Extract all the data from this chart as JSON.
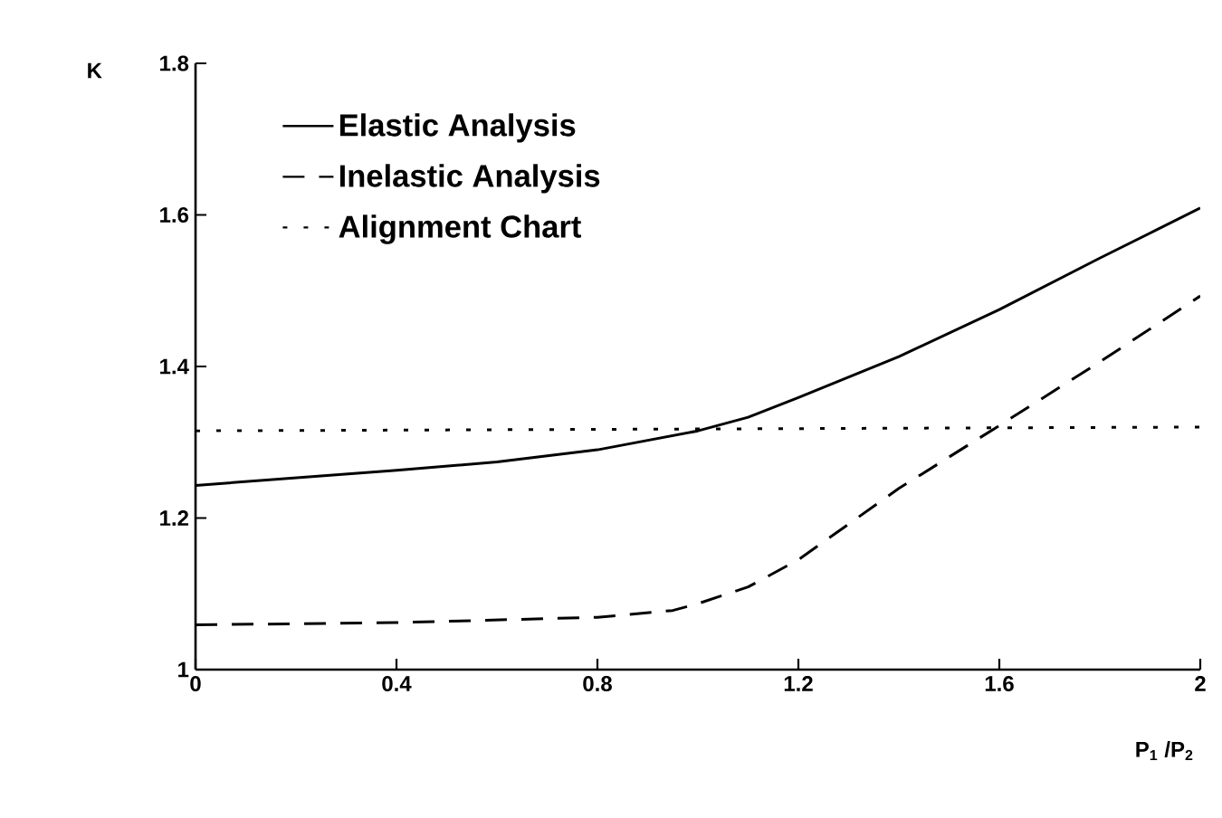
{
  "chart_data": {
    "type": "line",
    "xlabel": "P$_{1}$ /P$_{2}$",
    "ylabel": "K",
    "xlim": [
      0,
      2
    ],
    "ylim": [
      1,
      1.8
    ],
    "xticks": [
      0,
      0.4,
      0.8,
      1.2,
      1.6,
      2
    ],
    "yticks": [
      1,
      1.2,
      1.4,
      1.6,
      1.8
    ],
    "grid": false,
    "legend": "top left",
    "marker": "none",
    "series": [
      {
        "name": "Elastic Analysis",
        "color": "#000000",
        "line_style": "solid",
        "x": [
          0,
          0.4,
          0.6,
          0.8,
          1.0,
          1.1,
          1.2,
          1.4,
          1.6,
          1.8,
          2.0
        ],
        "values": [
          1.243,
          1.263,
          1.274,
          1.29,
          1.315,
          1.333,
          1.359,
          1.413,
          1.475,
          1.543,
          1.609
        ]
      },
      {
        "name": "Inelastic Analysis",
        "color": "#000000",
        "line_style": "dashed",
        "x": [
          0,
          0.4,
          0.8,
          0.95,
          1.0,
          1.1,
          1.2,
          1.4,
          1.6,
          1.8,
          2.0
        ],
        "values": [
          1.059,
          1.062,
          1.069,
          1.078,
          1.087,
          1.109,
          1.145,
          1.239,
          1.322,
          1.406,
          1.493
        ]
      },
      {
        "name": "Alignment Chart",
        "color": "#000000",
        "line_style": "dotted",
        "x": [
          0,
          2
        ],
        "values": [
          1.315,
          1.32
        ]
      }
    ]
  }
}
